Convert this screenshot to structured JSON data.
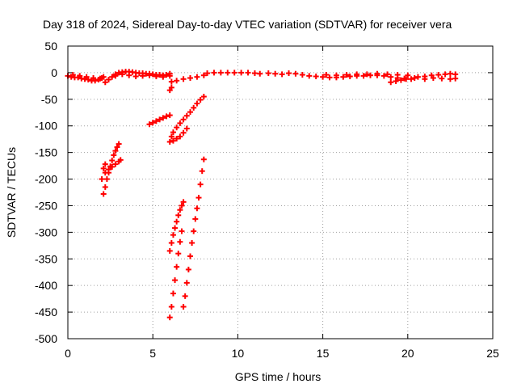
{
  "chart_data": {
    "type": "scatter",
    "title": "Day 318 of 2024, Sidereal Day-to-day VTEC variation (SDTVAR) for receiver vera",
    "xlabel": "GPS time / hours",
    "ylabel": "SDTVAR / TECUs",
    "xlim": [
      0,
      25
    ],
    "ylim": [
      -500,
      50
    ],
    "xticks": [
      0,
      5,
      10,
      15,
      20,
      25
    ],
    "yticks": [
      50,
      0,
      -50,
      -100,
      -150,
      -200,
      -250,
      -300,
      -350,
      -400,
      -450,
      -500
    ],
    "grid": true,
    "marker": "+",
    "color": "#ff0000",
    "series": [
      {
        "points": [
          [
            0.0,
            -6
          ],
          [
            0.2,
            -8
          ],
          [
            0.4,
            -9
          ],
          [
            0.6,
            -9
          ],
          [
            0.8,
            -11
          ],
          [
            1.0,
            -12
          ],
          [
            1.2,
            -13
          ],
          [
            1.4,
            -15
          ],
          [
            1.6,
            -15
          ],
          [
            1.8,
            -13
          ],
          [
            2.0,
            -10
          ],
          [
            2.1,
            -8
          ],
          [
            0.3,
            -4
          ],
          [
            0.7,
            -6
          ],
          [
            1.1,
            -8
          ],
          [
            1.5,
            -10
          ],
          [
            1.9,
            -11
          ],
          [
            2.2,
            -18
          ],
          [
            2.4,
            -13
          ],
          [
            2.6,
            -8
          ],
          [
            2.8,
            -3
          ],
          [
            3.0,
            0
          ],
          [
            3.2,
            1
          ],
          [
            3.4,
            2
          ],
          [
            3.6,
            2
          ],
          [
            3.8,
            1
          ],
          [
            4.0,
            0
          ],
          [
            4.2,
            -1
          ],
          [
            4.4,
            -1
          ],
          [
            4.6,
            -2
          ],
          [
            4.8,
            -2
          ],
          [
            5.0,
            -3
          ],
          [
            5.2,
            -4
          ],
          [
            5.4,
            -4
          ],
          [
            5.6,
            -5
          ],
          [
            5.8,
            -4
          ],
          [
            6.0,
            -2
          ],
          [
            2.8,
            -6
          ],
          [
            3.2,
            -3
          ],
          [
            3.6,
            -5
          ],
          [
            4.0,
            -7
          ],
          [
            4.4,
            -6
          ],
          [
            4.8,
            -5
          ],
          [
            5.2,
            -7
          ],
          [
            5.6,
            -8
          ],
          [
            6.0,
            -6
          ],
          [
            6.0,
            -33
          ],
          [
            6.1,
            -28
          ],
          [
            6.1,
            -17
          ],
          [
            6.4,
            -15
          ],
          [
            6.8,
            -12
          ],
          [
            7.2,
            -10
          ],
          [
            7.6,
            -8
          ],
          [
            8.0,
            -5
          ],
          [
            8.2,
            -1
          ],
          [
            8.6,
            0
          ],
          [
            9.0,
            0
          ],
          [
            9.4,
            0
          ],
          [
            9.8,
            0
          ],
          [
            10.2,
            0
          ],
          [
            10.6,
            0
          ],
          [
            11.0,
            -1
          ],
          [
            11.3,
            -2
          ],
          [
            11.8,
            -1
          ],
          [
            12.2,
            -2
          ],
          [
            12.6,
            -3
          ],
          [
            13.0,
            -1
          ],
          [
            13.4,
            -2
          ],
          [
            13.8,
            -4
          ],
          [
            14.2,
            -6
          ],
          [
            14.6,
            -7
          ],
          [
            15.0,
            -8
          ],
          [
            15.4,
            -9
          ],
          [
            15.8,
            -9
          ],
          [
            16.2,
            -8
          ],
          [
            16.6,
            -7
          ],
          [
            17.0,
            -6
          ],
          [
            17.4,
            -6
          ],
          [
            17.8,
            -5
          ],
          [
            18.2,
            -5
          ],
          [
            18.6,
            -6
          ],
          [
            19.0,
            -8
          ],
          [
            19.4,
            -10
          ],
          [
            19.8,
            -11
          ],
          [
            20.2,
            -12
          ],
          [
            20.4,
            -10
          ],
          [
            15.2,
            -4
          ],
          [
            15.8,
            -5
          ],
          [
            16.4,
            -4
          ],
          [
            17.0,
            -3
          ],
          [
            17.6,
            -3
          ],
          [
            18.2,
            -2
          ],
          [
            18.8,
            -3
          ],
          [
            19.4,
            -4
          ],
          [
            20.0,
            -5
          ],
          [
            19.0,
            -18
          ],
          [
            19.3,
            -16
          ],
          [
            19.6,
            -14
          ],
          [
            19.9,
            -12
          ],
          [
            20.6,
            -8
          ],
          [
            21.0,
            -7
          ],
          [
            21.4,
            -5
          ],
          [
            21.8,
            -4
          ],
          [
            22.2,
            -3
          ],
          [
            22.5,
            -2
          ],
          [
            22.8,
            -3
          ],
          [
            21.0,
            -12
          ],
          [
            21.5,
            -10
          ],
          [
            22.0,
            -11
          ],
          [
            22.5,
            -12
          ],
          [
            22.8,
            -11
          ],
          [
            2.1,
            -228
          ],
          [
            2.2,
            -215
          ],
          [
            2.3,
            -200
          ],
          [
            2.4,
            -188
          ],
          [
            2.5,
            -176
          ],
          [
            2.6,
            -165
          ],
          [
            2.7,
            -155
          ],
          [
            2.8,
            -147
          ],
          [
            2.9,
            -140
          ],
          [
            3.0,
            -134
          ],
          [
            2.0,
            -200
          ],
          [
            2.1,
            -180
          ],
          [
            2.2,
            -172
          ],
          [
            2.2,
            -188
          ],
          [
            2.4,
            -182
          ],
          [
            2.6,
            -177
          ],
          [
            2.8,
            -172
          ],
          [
            3.0,
            -167
          ],
          [
            3.1,
            -164
          ],
          [
            4.8,
            -97
          ],
          [
            5.0,
            -94
          ],
          [
            5.2,
            -91
          ],
          [
            5.4,
            -88
          ],
          [
            5.6,
            -85
          ],
          [
            5.8,
            -82
          ],
          [
            6.0,
            -80
          ],
          [
            6.0,
            -130
          ],
          [
            6.1,
            -120
          ],
          [
            6.2,
            -112
          ],
          [
            6.4,
            -103
          ],
          [
            6.6,
            -95
          ],
          [
            6.8,
            -88
          ],
          [
            7.0,
            -81
          ],
          [
            7.2,
            -74
          ],
          [
            7.4,
            -66
          ],
          [
            7.6,
            -58
          ],
          [
            7.8,
            -51
          ],
          [
            8.0,
            -45
          ],
          [
            6.2,
            -128
          ],
          [
            6.4,
            -124
          ],
          [
            6.6,
            -120
          ],
          [
            6.8,
            -113
          ],
          [
            7.0,
            -105
          ],
          [
            6.0,
            -335
          ],
          [
            6.1,
            -320
          ],
          [
            6.2,
            -305
          ],
          [
            6.3,
            -292
          ],
          [
            6.4,
            -280
          ],
          [
            6.5,
            -268
          ],
          [
            6.6,
            -258
          ],
          [
            6.7,
            -250
          ],
          [
            6.8,
            -243
          ],
          [
            6.0,
            -460
          ],
          [
            6.1,
            -440
          ],
          [
            6.2,
            -415
          ],
          [
            6.3,
            -390
          ],
          [
            6.4,
            -365
          ],
          [
            6.5,
            -340
          ],
          [
            6.6,
            -318
          ],
          [
            6.7,
            -298
          ],
          [
            6.8,
            -440
          ],
          [
            6.9,
            -420
          ],
          [
            7.0,
            -395
          ],
          [
            7.1,
            -370
          ],
          [
            7.2,
            -345
          ],
          [
            7.3,
            -320
          ],
          [
            7.4,
            -298
          ],
          [
            7.5,
            -275
          ],
          [
            7.6,
            -255
          ],
          [
            7.7,
            -235
          ],
          [
            7.8,
            -210
          ],
          [
            7.9,
            -185
          ],
          [
            8.0,
            -163
          ]
        ]
      }
    ]
  }
}
